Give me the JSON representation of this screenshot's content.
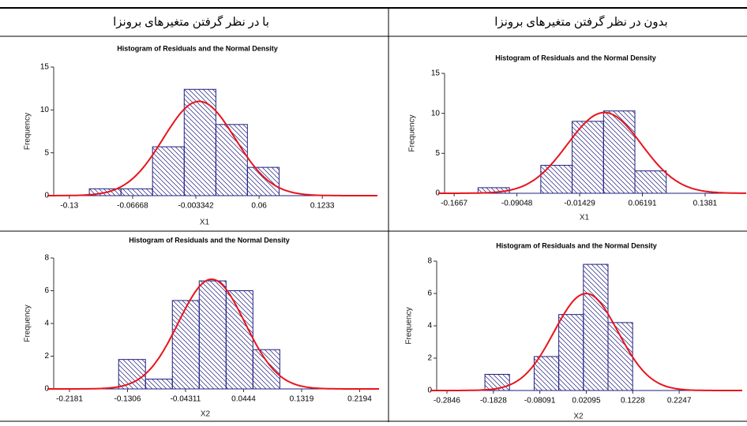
{
  "table": {
    "headers": [
      "با در نظر گرفتن متغیرهای برونزا",
      "بدون در نظر گرفتن متغیرهای برونزا"
    ]
  },
  "chart_data": [
    {
      "type": "histogram",
      "title": "Histogram of Residuals and the Normal Density",
      "x_label": "X1",
      "y_label": "Frequency",
      "bins": [
        -0.11,
        -0.0783,
        -0.0467,
        -0.015,
        0.0167,
        0.0483,
        0.08
      ],
      "values": [
        0.8,
        0.8,
        5.7,
        12.4,
        8.3,
        3.3
      ],
      "color": "#1f1f80",
      "normal_curve": {
        "color": "#e8141b",
        "mean": 0.0,
        "sd": 0.036,
        "peak": 11
      },
      "xlim": [
        -0.152,
        0.1785
      ],
      "xticks": [
        -0.13,
        -0.06668,
        -0.003342,
        0.06,
        0.1233
      ],
      "ylim": [
        0,
        15
      ],
      "yticks": [
        0,
        5,
        10,
        15
      ],
      "grid": false
    },
    {
      "type": "histogram",
      "title": "Histogram of Residuals and the Normal Density",
      "x_label": "X1",
      "y_label": "Frequency",
      "bins": [
        -0.1377,
        -0.0996,
        -0.0615,
        -0.0234,
        0.0147,
        0.0528,
        0.0909
      ],
      "values": [
        0.7,
        0,
        3.5,
        9.0,
        10.3,
        2.8
      ],
      "color": "#1f1f80",
      "normal_curve": {
        "color": "#e8141b",
        "mean": 0.0158,
        "sd": 0.045,
        "peak": 10.1
      },
      "xlim": [
        -0.186,
        0.188
      ],
      "xticks": [
        -0.1667,
        -0.09048,
        -0.01429,
        0.06191,
        0.1381
      ],
      "ylim": [
        0,
        15
      ],
      "yticks": [
        0,
        5,
        10,
        15
      ],
      "grid": false
    },
    {
      "type": "histogram",
      "title": "Histogram of Residuals and the Normal Density",
      "x_label": "X2",
      "y_label": "Frequency",
      "bins": [
        -0.144,
        -0.1035,
        -0.063,
        -0.0225,
        0.018,
        0.0585,
        0.099
      ],
      "values": [
        1.8,
        0.6,
        5.4,
        6.6,
        6.0,
        2.4
      ],
      "color": "#1f1f80",
      "normal_curve": {
        "color": "#e8141b",
        "mean": -0.0038,
        "sd": 0.05,
        "peak": 6.7
      },
      "xlim": [
        -0.2514,
        0.2486
      ],
      "xticks": [
        -0.2181,
        -0.1306,
        -0.04311,
        0.0444,
        0.1319,
        0.2194
      ],
      "ylim": [
        0,
        8
      ],
      "yticks": [
        0,
        2,
        4,
        6,
        8
      ],
      "grid": false
    },
    {
      "type": "histogram",
      "title": "Histogram of Residuals and the Normal Density",
      "x_label": "X2",
      "y_label": "Frequency",
      "bins": [
        -0.2014,
        -0.1474,
        -0.0934,
        -0.0394,
        0.0146,
        0.0686,
        0.1226
      ],
      "values": [
        1.0,
        0,
        2.1,
        4.7,
        7.8,
        4.2
      ],
      "color": "#1f1f80",
      "normal_curve": {
        "color": "#e8141b",
        "mean": 0.0204,
        "sd": 0.07,
        "peak": 6.0
      },
      "xlim": [
        -0.321,
        0.363
      ],
      "xticks": [
        -0.2846,
        -0.1828,
        -0.08091,
        0.02095,
        0.1228,
        0.2247
      ],
      "ylim": [
        0,
        8
      ],
      "yticks": [
        0,
        2,
        4,
        6,
        8
      ],
      "grid": false
    }
  ]
}
